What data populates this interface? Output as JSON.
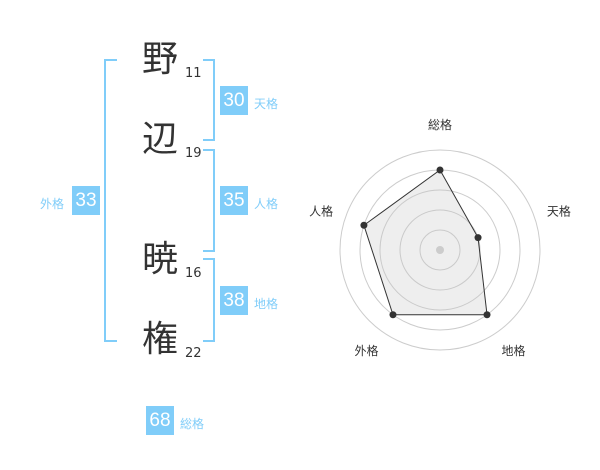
{
  "name": [
    {
      "char": "野",
      "strokes": "11"
    },
    {
      "char": "辺",
      "strokes": "19"
    },
    {
      "char": "暁",
      "strokes": "16"
    },
    {
      "char": "権",
      "strokes": "22"
    }
  ],
  "kaku": {
    "ten": {
      "value": "30",
      "label": "天格"
    },
    "jin": {
      "value": "35",
      "label": "人格"
    },
    "chi": {
      "value": "38",
      "label": "地格"
    },
    "gai": {
      "value": "33",
      "label": "外格"
    },
    "sou": {
      "value": "68",
      "label": "総格"
    }
  },
  "accent": "#80cdf9",
  "chart_data": {
    "type": "radar",
    "axes": [
      "総格",
      "天格",
      "地格",
      "外格",
      "人格"
    ],
    "values": [
      4,
      2,
      4,
      4,
      4
    ],
    "range": [
      0,
      5
    ],
    "rings": 5
  }
}
